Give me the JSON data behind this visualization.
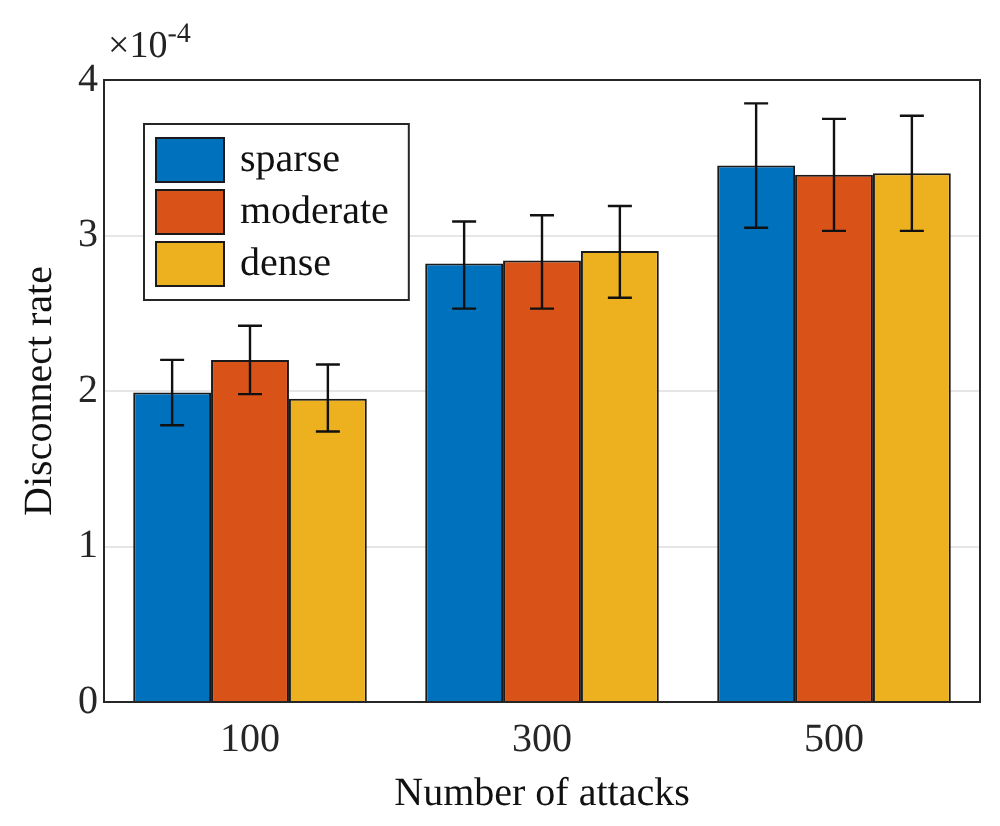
{
  "chart_data": {
    "type": "bar",
    "xlabel": "Number of attacks",
    "ylabel": "Disconnect rate",
    "annotations": [
      "×10$^{-4}$"
    ],
    "categories": [
      "100",
      "300",
      "500"
    ],
    "series": [
      {
        "name": "sparse",
        "color": "#0072bd",
        "values": [
          1.99,
          2.82,
          3.45
        ],
        "errors": [
          [
            1.78,
            2.2
          ],
          [
            2.53,
            3.09
          ],
          [
            3.05,
            3.85
          ]
        ]
      },
      {
        "name": "moderate",
        "color": "#d95319",
        "values": [
          2.2,
          2.84,
          3.39
        ],
        "errors": [
          [
            1.98,
            2.42
          ],
          [
            2.53,
            3.13
          ],
          [
            3.03,
            3.75
          ]
        ]
      },
      {
        "name": "dense",
        "color": "#edb120",
        "values": [
          1.95,
          2.9,
          3.4
        ],
        "errors": [
          [
            1.74,
            2.17
          ],
          [
            2.6,
            3.19
          ],
          [
            3.03,
            3.77
          ]
        ]
      }
    ],
    "ylim": [
      0,
      4
    ],
    "yticks": [
      0,
      1,
      2,
      3,
      4
    ],
    "grid": "y",
    "legend": "top left"
  }
}
